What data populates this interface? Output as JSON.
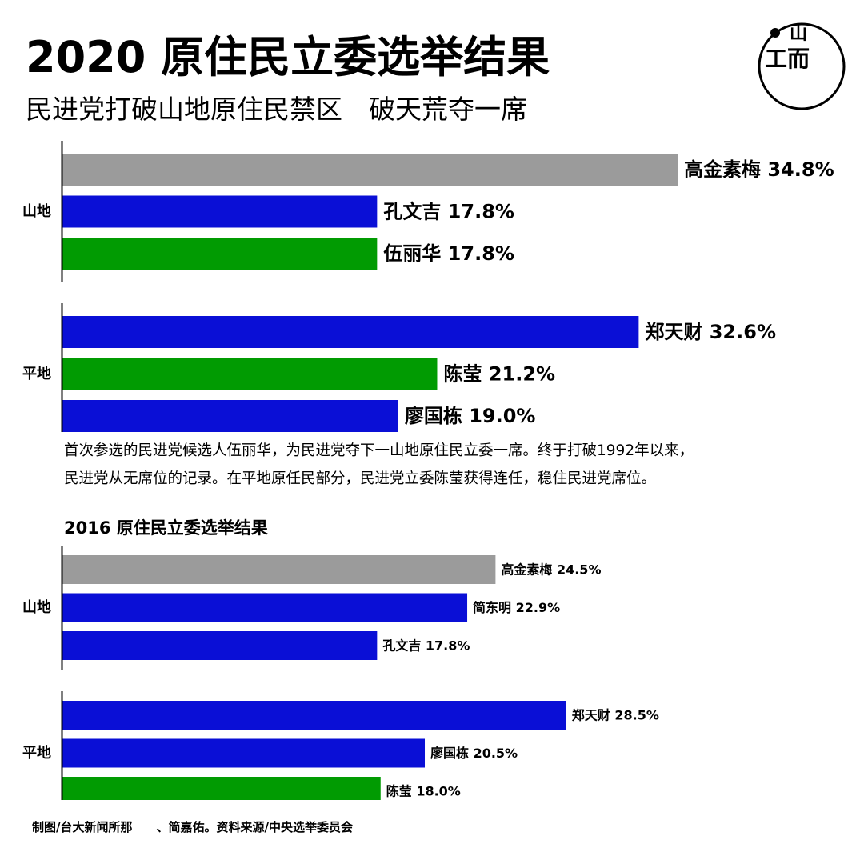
{
  "title": "2020 原住民立委选举结果",
  "subtitle": "民进党打破山地原住民禁区　破天荒夺一席",
  "description": [
    "首次参选的民进党候选人伍丽华，为民进党夺下一山地原住民立委一席。终于打破1992年以来，",
    "民进党从无席位的记录。在平地原任民部分，民进党立委陈莹获得连任，稳住民进党席位。"
  ],
  "section_2016_title": "2016 原住民立委选举结果",
  "credit": "制图/台大新闻所那　　、简嘉佑。资料来源/中央选举委员会",
  "logo": {
    "name": "端传媒",
    "glyphs": [
      "山",
      "工",
      "而"
    ]
  },
  "colors": {
    "grey": "#9b9b9b",
    "blue": "#0a0fd6",
    "green": "#019b02",
    "axis": "#000000"
  },
  "chart_data": [
    {
      "id": "2020",
      "type": "bar",
      "orientation": "horizontal",
      "value_unit": "%",
      "xlim": [
        0,
        34.8
      ],
      "groups": [
        {
          "label": "山地",
          "bars": [
            {
              "name": "高金素梅",
              "value": 34.8,
              "color": "grey"
            },
            {
              "name": "孔文吉",
              "value": 17.8,
              "color": "blue"
            },
            {
              "name": "伍丽华",
              "value": 17.8,
              "color": "green"
            }
          ]
        },
        {
          "label": "平地",
          "bars": [
            {
              "name": "郑天财",
              "value": 32.6,
              "color": "blue"
            },
            {
              "name": "陈莹",
              "value": 21.2,
              "color": "green"
            },
            {
              "name": "廖国栋",
              "value": 19.0,
              "color": "blue"
            }
          ]
        }
      ]
    },
    {
      "id": "2016",
      "type": "bar",
      "orientation": "horizontal",
      "value_unit": "%",
      "xlim": [
        0,
        34.8
      ],
      "groups": [
        {
          "label": "山地",
          "bars": [
            {
              "name": "高金素梅",
              "value": 24.5,
              "color": "grey"
            },
            {
              "name": "简东明",
              "value": 22.9,
              "color": "blue"
            },
            {
              "name": "孔文吉",
              "value": 17.8,
              "color": "blue"
            }
          ]
        },
        {
          "label": "平地",
          "bars": [
            {
              "name": "郑天财",
              "value": 28.5,
              "color": "blue"
            },
            {
              "name": "廖国栋",
              "value": 20.5,
              "color": "blue"
            },
            {
              "name": "陈莹",
              "value": 18.0,
              "color": "green"
            }
          ]
        }
      ]
    }
  ]
}
